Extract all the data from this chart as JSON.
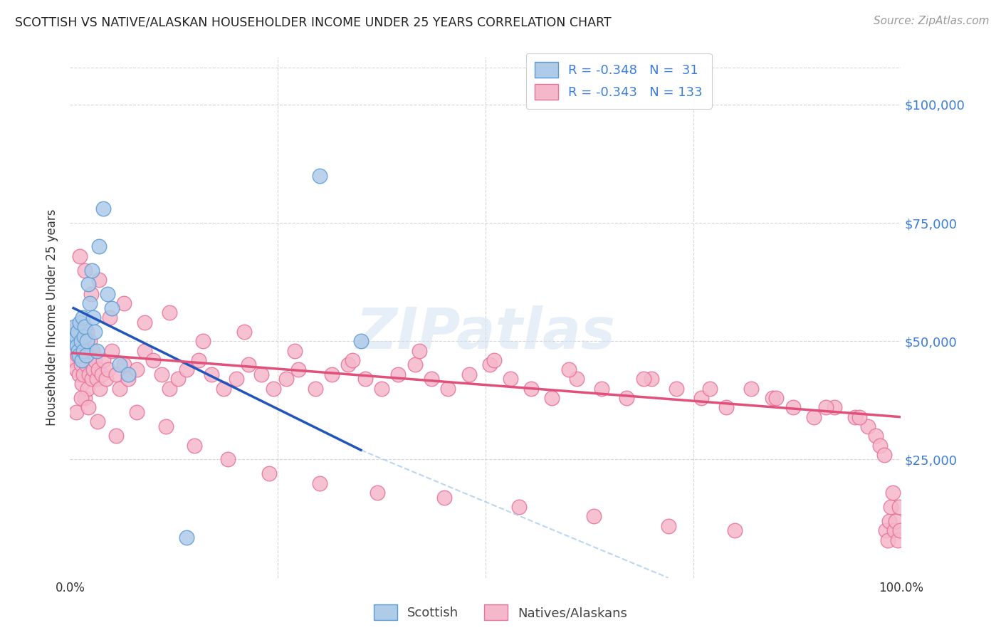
{
  "title": "SCOTTISH VS NATIVE/ALASKAN HOUSEHOLDER INCOME UNDER 25 YEARS CORRELATION CHART",
  "source": "Source: ZipAtlas.com",
  "ylabel": "Householder Income Under 25 years",
  "y_labels_right": [
    "$25,000",
    "$50,000",
    "$75,000",
    "$100,000"
  ],
  "y_ticks": [
    25000,
    50000,
    75000,
    100000
  ],
  "y_min": 0,
  "y_max": 110000,
  "x_min": 0.0,
  "x_max": 1.0,
  "x_tick_positions": [
    0.0,
    0.25,
    0.5,
    0.75,
    1.0
  ],
  "x_tick_labels": [
    "0.0%",
    "",
    "",
    "",
    "100.0%"
  ],
  "legend_line1": "R = -0.348   N =  31",
  "legend_line2": "R = -0.343   N = 133",
  "scottish_color": "#aecbe8",
  "native_color": "#f5b8cb",
  "scottish_edge": "#5b9bd5",
  "native_edge": "#e8709a",
  "blue_line_color": "#2255bb",
  "pink_line_color": "#e0507a",
  "dashed_line_color": "#aaccee",
  "watermark": "ZIPatlas",
  "background_color": "#ffffff",
  "grid_color": "#cccccc",
  "scottish_x": [
    0.005,
    0.006,
    0.007,
    0.008,
    0.009,
    0.01,
    0.011,
    0.012,
    0.013,
    0.014,
    0.015,
    0.016,
    0.017,
    0.018,
    0.019,
    0.02,
    0.022,
    0.024,
    0.026,
    0.028,
    0.03,
    0.032,
    0.035,
    0.04,
    0.045,
    0.05,
    0.06,
    0.07,
    0.14,
    0.3,
    0.35
  ],
  "scottish_y": [
    53000,
    50000,
    51000,
    49000,
    52000,
    48000,
    47000,
    54000,
    50000,
    46000,
    55000,
    48000,
    51000,
    53000,
    47000,
    50000,
    62000,
    58000,
    65000,
    55000,
    52000,
    48000,
    70000,
    78000,
    60000,
    57000,
    45000,
    43000,
    8500,
    85000,
    50000
  ],
  "native_x": [
    0.003,
    0.004,
    0.005,
    0.006,
    0.007,
    0.008,
    0.009,
    0.01,
    0.011,
    0.012,
    0.013,
    0.014,
    0.015,
    0.016,
    0.017,
    0.018,
    0.019,
    0.02,
    0.021,
    0.022,
    0.023,
    0.024,
    0.025,
    0.026,
    0.027,
    0.028,
    0.03,
    0.032,
    0.034,
    0.036,
    0.038,
    0.04,
    0.043,
    0.046,
    0.05,
    0.055,
    0.06,
    0.065,
    0.07,
    0.08,
    0.09,
    0.1,
    0.11,
    0.12,
    0.13,
    0.14,
    0.155,
    0.17,
    0.185,
    0.2,
    0.215,
    0.23,
    0.245,
    0.26,
    0.275,
    0.295,
    0.315,
    0.335,
    0.355,
    0.375,
    0.395,
    0.415,
    0.435,
    0.455,
    0.48,
    0.505,
    0.53,
    0.555,
    0.58,
    0.61,
    0.64,
    0.67,
    0.7,
    0.73,
    0.76,
    0.79,
    0.82,
    0.845,
    0.87,
    0.895,
    0.92,
    0.945,
    0.96,
    0.97,
    0.975,
    0.98,
    0.982,
    0.984,
    0.986,
    0.988,
    0.99,
    0.992,
    0.994,
    0.996,
    0.998,
    0.999,
    0.012,
    0.018,
    0.025,
    0.035,
    0.048,
    0.065,
    0.09,
    0.12,
    0.16,
    0.21,
    0.27,
    0.34,
    0.42,
    0.51,
    0.6,
    0.69,
    0.77,
    0.85,
    0.91,
    0.95,
    0.007,
    0.013,
    0.022,
    0.033,
    0.055,
    0.08,
    0.115,
    0.15,
    0.19,
    0.24,
    0.3,
    0.37,
    0.45,
    0.54,
    0.63,
    0.72,
    0.8
  ],
  "native_y": [
    48000,
    52000,
    46000,
    50000,
    44000,
    53000,
    47000,
    51000,
    43000,
    49000,
    45000,
    41000,
    47000,
    43000,
    50000,
    38000,
    45000,
    52000,
    40000,
    47000,
    43000,
    50000,
    46000,
    42000,
    48000,
    44000,
    46000,
    42000,
    44000,
    40000,
    43000,
    46000,
    42000,
    44000,
    48000,
    43000,
    40000,
    45000,
    42000,
    44000,
    48000,
    46000,
    43000,
    40000,
    42000,
    44000,
    46000,
    43000,
    40000,
    42000,
    45000,
    43000,
    40000,
    42000,
    44000,
    40000,
    43000,
    45000,
    42000,
    40000,
    43000,
    45000,
    42000,
    40000,
    43000,
    45000,
    42000,
    40000,
    38000,
    42000,
    40000,
    38000,
    42000,
    40000,
    38000,
    36000,
    40000,
    38000,
    36000,
    34000,
    36000,
    34000,
    32000,
    30000,
    28000,
    26000,
    10000,
    8000,
    12000,
    15000,
    18000,
    10000,
    12000,
    8000,
    15000,
    10000,
    68000,
    65000,
    60000,
    63000,
    55000,
    58000,
    54000,
    56000,
    50000,
    52000,
    48000,
    46000,
    48000,
    46000,
    44000,
    42000,
    40000,
    38000,
    36000,
    34000,
    35000,
    38000,
    36000,
    33000,
    30000,
    35000,
    32000,
    28000,
    25000,
    22000,
    20000,
    18000,
    17000,
    15000,
    13000,
    11000,
    10000
  ],
  "blue_line_x": [
    0.004,
    0.35
  ],
  "blue_line_y": [
    57000,
    27000
  ],
  "pink_line_x": [
    0.003,
    0.999
  ],
  "pink_line_y": [
    47500,
    34000
  ],
  "dash_line_x": [
    0.35,
    0.72
  ],
  "dash_line_y": [
    27000,
    0
  ]
}
